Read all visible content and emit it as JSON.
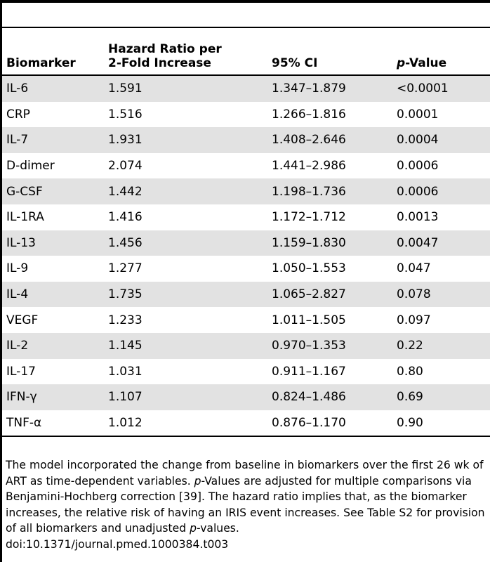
{
  "table": {
    "headers": {
      "biomarker": "Biomarker",
      "hazard_ratio_line1": "Hazard Ratio per",
      "hazard_ratio_line2": "2-Fold Increase",
      "ci": "95% CI",
      "p_value_italic": "p",
      "p_value_rest": "-Value"
    },
    "rows": [
      {
        "biomarker": "IL-6",
        "hazard_ratio": "1.591",
        "ci": "1.347–1.879",
        "p_value": "<0.0001"
      },
      {
        "biomarker": "CRP",
        "hazard_ratio": "1.516",
        "ci": "1.266–1.816",
        "p_value": "0.0001"
      },
      {
        "biomarker": "IL-7",
        "hazard_ratio": "1.931",
        "ci": "1.408–2.646",
        "p_value": "0.0004"
      },
      {
        "biomarker": "D-dimer",
        "hazard_ratio": "2.074",
        "ci": "1.441–2.986",
        "p_value": "0.0006"
      },
      {
        "biomarker": "G-CSF",
        "hazard_ratio": "1.442",
        "ci": "1.198–1.736",
        "p_value": "0.0006"
      },
      {
        "biomarker": "IL-1RA",
        "hazard_ratio": "1.416",
        "ci": "1.172–1.712",
        "p_value": "0.0013"
      },
      {
        "biomarker": "IL-13",
        "hazard_ratio": "1.456",
        "ci": "1.159–1.830",
        "p_value": "0.0047"
      },
      {
        "biomarker": "IL-9",
        "hazard_ratio": "1.277",
        "ci": "1.050–1.553",
        "p_value": "0.047"
      },
      {
        "biomarker": "IL-4",
        "hazard_ratio": "1.735",
        "ci": "1.065–2.827",
        "p_value": "0.078"
      },
      {
        "biomarker": "VEGF",
        "hazard_ratio": "1.233",
        "ci": "1.011–1.505",
        "p_value": "0.097"
      },
      {
        "biomarker": "IL-2",
        "hazard_ratio": "1.145",
        "ci": "0.970–1.353",
        "p_value": "0.22"
      },
      {
        "biomarker": "IL-17",
        "hazard_ratio": "1.031",
        "ci": "0.911–1.167",
        "p_value": "0.80"
      },
      {
        "biomarker": "IFN-γ",
        "hazard_ratio": "1.107",
        "ci": "0.824–1.486",
        "p_value": "0.69"
      },
      {
        "biomarker": "TNF-α",
        "hazard_ratio": "1.012",
        "ci": "0.876–1.170",
        "p_value": "0.90"
      }
    ]
  },
  "footnote": {
    "part1": "The model incorporated the change from baseline in biomarkers over the first 26 wk of ART as time-dependent variables. ",
    "part2_italic": "p",
    "part3": "-Values are adjusted for multiple comparisons via Benjamini-Hochberg correction [39]. The hazard ratio implies that, as the biomarker increases, the relative risk of having an IRIS event increases. See Table S2 for provision of all biomarkers and unadjusted ",
    "part4_italic": "p",
    "part5": "-values.",
    "doi": "doi:10.1371/journal.pmed.1000384.t003"
  }
}
